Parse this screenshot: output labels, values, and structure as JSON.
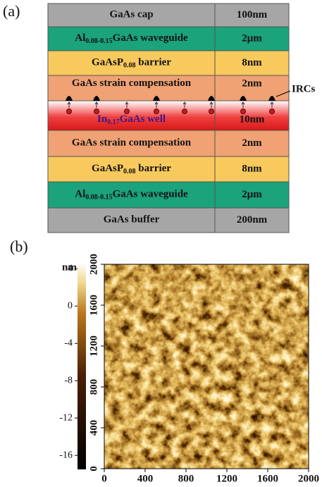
{
  "panel_a": {
    "label": "(a)",
    "layers": [
      {
        "name": [
          "GaAs cap"
        ],
        "thickness": "100nm",
        "color": "#a6a6a6"
      },
      {
        "name": [
          "Al",
          "0.08-0.15",
          "GaAs waveguide"
        ],
        "thickness": "2μm",
        "color": "#1ba37b"
      },
      {
        "name": [
          "GaAsP",
          "0.08",
          " barrier"
        ],
        "thickness": "8nm",
        "color": "#f8c95c"
      },
      {
        "name": [
          "GaAs strain compensation"
        ],
        "thickness": "2nm",
        "color": "#f0a274"
      },
      {
        "name": [
          "In",
          "0.17",
          "GaAs well"
        ],
        "thickness": "10nm",
        "color": "#e3232a"
      },
      {
        "name": [
          "GaAs strain compensation"
        ],
        "thickness": "2nm",
        "color": "#f0a274"
      },
      {
        "name": [
          "GaAsP",
          "0.08",
          " barrier"
        ],
        "thickness": "8nm",
        "color": "#f8c95c"
      },
      {
        "name": [
          "Al",
          "0.08-0.15",
          "GaAs waveguide"
        ],
        "thickness": "2μm",
        "color": "#1ba37b"
      },
      {
        "name": [
          "GaAs buffer"
        ],
        "thickness": "200nm",
        "color": "#a6a6a6"
      }
    ],
    "annotation": "IRCs"
  },
  "panel_b": {
    "label": "(b)",
    "colorbar_unit": "nm",
    "clim": [
      -17.5,
      4.7
    ],
    "cticks": [
      4,
      0,
      -4,
      -8,
      -12,
      -16
    ],
    "xlim": [
      0,
      2000
    ],
    "xticks": [
      0,
      400,
      800,
      1200,
      1600,
      2000
    ],
    "ylim": [
      0,
      2000
    ],
    "yticks": [
      0,
      400,
      800,
      1200,
      1600,
      2000
    ]
  }
}
